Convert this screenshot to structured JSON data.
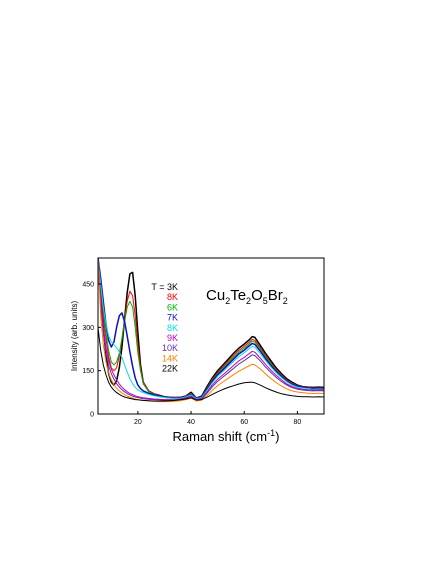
{
  "chart_data": {
    "type": "line",
    "title": "Cu2Te2O5Br2",
    "title_parts": {
      "cu": "Cu",
      "s2a": "2",
      "te": "Te",
      "s2b": "2",
      "o": "O",
      "s5": "5",
      "br": "Br",
      "s2c": "2"
    },
    "xlabel": "Raman shift (cm",
    "xlabel_sup": "-1",
    "xlabel_end": ")",
    "ylabel": "Intensity (arb. units)",
    "xlim": [
      5,
      90
    ],
    "ylim": [
      0,
      540
    ],
    "xticks": [
      20,
      40,
      60,
      80
    ],
    "yticks": [
      0,
      150,
      300,
      450
    ],
    "grid": false,
    "legend_position": "top-center",
    "legend_prefix": "T = ",
    "series": [
      {
        "name": "3K",
        "color": "#000000",
        "width": 1.5,
        "x": [
          5,
          6,
          7,
          8,
          9,
          10,
          11,
          12,
          13,
          14,
          15,
          16,
          17,
          18,
          19,
          20,
          21,
          22,
          24,
          26,
          28,
          30,
          32,
          34,
          36,
          38,
          40,
          42,
          44,
          46,
          48,
          50,
          52,
          54,
          56,
          58,
          60,
          62,
          63,
          64,
          66,
          68,
          70,
          72,
          74,
          76,
          78,
          80,
          82,
          84,
          86,
          88,
          90
        ],
        "y": [
          540,
          420,
          300,
          200,
          140,
          110,
          100,
          115,
          160,
          230,
          330,
          420,
          485,
          490,
          410,
          280,
          170,
          110,
          80,
          70,
          65,
          60,
          58,
          57,
          58,
          62,
          75,
          55,
          62,
          95,
          125,
          150,
          170,
          190,
          210,
          228,
          242,
          258,
          268,
          265,
          238,
          210,
          185,
          160,
          140,
          122,
          110,
          100,
          95,
          93,
          92,
          93,
          92
        ]
      },
      {
        "name": "8K",
        "color": "#ff0000",
        "width": 1.0,
        "x": [
          5,
          6,
          7,
          8,
          9,
          10,
          11,
          12,
          13,
          14,
          15,
          16,
          17,
          18,
          19,
          20,
          21,
          22,
          24,
          26,
          28,
          30,
          32,
          34,
          36,
          38,
          40,
          42,
          44,
          46,
          48,
          50,
          52,
          54,
          56,
          58,
          60,
          62,
          63,
          64,
          66,
          68,
          70,
          72,
          74,
          76,
          78,
          80,
          82,
          84,
          86,
          88,
          90
        ],
        "y": [
          540,
          440,
          340,
          260,
          200,
          160,
          150,
          160,
          200,
          260,
          330,
          390,
          425,
          410,
          340,
          240,
          160,
          110,
          80,
          70,
          64,
          60,
          58,
          57,
          58,
          62,
          72,
          55,
          60,
          90,
          120,
          143,
          163,
          183,
          202,
          220,
          234,
          250,
          258,
          255,
          230,
          203,
          178,
          155,
          135,
          118,
          107,
          98,
          94,
          92,
          90,
          91,
          90
        ]
      },
      {
        "name": "6K",
        "color": "#00b000",
        "width": 1.0,
        "x": [
          5,
          6,
          7,
          8,
          9,
          10,
          11,
          12,
          13,
          14,
          15,
          16,
          17,
          18,
          19,
          20,
          21,
          22,
          24,
          26,
          28,
          30,
          32,
          34,
          36,
          38,
          40,
          42,
          44,
          46,
          48,
          50,
          52,
          54,
          56,
          58,
          60,
          62,
          63,
          64,
          66,
          68,
          70,
          72,
          74,
          76,
          78,
          80,
          82,
          84,
          86,
          88,
          90
        ],
        "y": [
          540,
          450,
          360,
          280,
          220,
          180,
          170,
          180,
          210,
          260,
          320,
          370,
          390,
          370,
          300,
          210,
          150,
          105,
          78,
          68,
          63,
          59,
          57,
          56,
          57,
          61,
          70,
          55,
          59,
          88,
          117,
          140,
          158,
          178,
          196,
          214,
          228,
          244,
          252,
          249,
          225,
          198,
          174,
          152,
          133,
          116,
          105,
          97,
          93,
          91,
          89,
          90,
          89
        ]
      },
      {
        "name": "7K",
        "color": "#1010c0",
        "width": 1.5,
        "x": [
          5,
          6,
          7,
          8,
          9,
          10,
          11,
          12,
          13,
          14,
          15,
          16,
          17,
          18,
          19,
          20,
          21,
          22,
          24,
          26,
          28,
          30,
          32,
          34,
          36,
          38,
          40,
          42,
          44,
          46,
          48,
          50,
          52,
          54,
          56,
          58,
          60,
          62,
          63,
          64,
          66,
          68,
          70,
          72,
          74,
          76,
          78,
          80,
          82,
          84,
          86,
          88,
          90
        ],
        "y": [
          540,
          470,
          390,
          310,
          255,
          232,
          250,
          300,
          340,
          350,
          320,
          270,
          215,
          165,
          125,
          100,
          88,
          80,
          72,
          66,
          62,
          58,
          56,
          55,
          56,
          60,
          68,
          54,
          58,
          85,
          113,
          136,
          153,
          172,
          190,
          208,
          221,
          237,
          244,
          241,
          218,
          192,
          169,
          148,
          130,
          114,
          103,
          96,
          92,
          90,
          88,
          89,
          88
        ]
      },
      {
        "name": "8K",
        "color": "#00e0e0",
        "width": 1.0,
        "x": [
          5,
          6,
          7,
          8,
          9,
          10,
          11,
          12,
          13,
          14,
          15,
          16,
          17,
          18,
          19,
          20,
          21,
          22,
          24,
          26,
          28,
          30,
          32,
          34,
          36,
          38,
          40,
          42,
          44,
          46,
          48,
          50,
          52,
          54,
          56,
          58,
          60,
          62,
          63,
          64,
          66,
          68,
          70,
          72,
          74,
          76,
          78,
          80,
          82,
          84,
          86,
          88,
          90
        ],
        "y": [
          540,
          450,
          370,
          310,
          270,
          250,
          240,
          230,
          215,
          195,
          170,
          145,
          122,
          105,
          92,
          84,
          78,
          74,
          68,
          63,
          60,
          57,
          55,
          54,
          55,
          59,
          66,
          53,
          57,
          82,
          108,
          130,
          147,
          165,
          182,
          199,
          212,
          227,
          234,
          231,
          209,
          185,
          163,
          143,
          126,
          111,
          100,
          93,
          90,
          88,
          86,
          87,
          86
        ]
      },
      {
        "name": "9K",
        "color": "#c000c0",
        "width": 1.0,
        "x": [
          5,
          6,
          7,
          8,
          9,
          10,
          11,
          12,
          13,
          14,
          15,
          16,
          17,
          18,
          19,
          20,
          21,
          22,
          24,
          26,
          28,
          30,
          32,
          34,
          36,
          38,
          40,
          42,
          44,
          46,
          48,
          50,
          52,
          54,
          56,
          58,
          60,
          62,
          63,
          64,
          66,
          68,
          70,
          72,
          74,
          76,
          78,
          80,
          82,
          84,
          86,
          88,
          90
        ],
        "y": [
          540,
          400,
          300,
          230,
          185,
          155,
          135,
          118,
          104,
          93,
          84,
          77,
          71,
          67,
          63,
          60,
          58,
          56,
          54,
          52,
          51,
          50,
          50,
          50,
          52,
          56,
          62,
          50,
          54,
          76,
          100,
          120,
          136,
          152,
          168,
          184,
          196,
          210,
          217,
          214,
          194,
          172,
          152,
          134,
          118,
          104,
          95,
          89,
          86,
          84,
          83,
          84,
          83
        ]
      },
      {
        "name": "10K",
        "color": "#6030a0",
        "width": 1.0,
        "x": [
          5,
          6,
          7,
          8,
          9,
          10,
          11,
          12,
          13,
          14,
          15,
          16,
          17,
          18,
          19,
          20,
          21,
          22,
          24,
          26,
          28,
          30,
          32,
          34,
          36,
          38,
          40,
          42,
          44,
          46,
          48,
          50,
          52,
          54,
          56,
          58,
          60,
          62,
          63,
          64,
          66,
          68,
          70,
          72,
          74,
          76,
          78,
          80,
          82,
          84,
          86,
          88,
          90
        ],
        "y": [
          540,
          380,
          280,
          210,
          168,
          140,
          120,
          105,
          93,
          84,
          77,
          71,
          66,
          62,
          59,
          57,
          55,
          53,
          51,
          50,
          49,
          48,
          48,
          48,
          50,
          54,
          60,
          48,
          52,
          72,
          94,
          113,
          128,
          143,
          158,
          173,
          185,
          198,
          205,
          202,
          184,
          163,
          144,
          127,
          112,
          100,
          91,
          86,
          83,
          81,
          80,
          81,
          80
        ]
      },
      {
        "name": "14K",
        "color": "#ff8000",
        "width": 1.0,
        "x": [
          5,
          6,
          7,
          8,
          9,
          10,
          11,
          12,
          13,
          14,
          15,
          16,
          17,
          18,
          19,
          20,
          21,
          22,
          24,
          26,
          28,
          30,
          32,
          34,
          36,
          38,
          40,
          42,
          44,
          46,
          48,
          50,
          52,
          54,
          56,
          58,
          60,
          62,
          63,
          64,
          66,
          68,
          70,
          72,
          74,
          76,
          78,
          80,
          82,
          84,
          86,
          88,
          90
        ],
        "y": [
          540,
          340,
          240,
          180,
          142,
          118,
          101,
          89,
          80,
          73,
          67,
          62,
          58,
          55,
          52,
          50,
          48,
          47,
          45,
          44,
          43,
          43,
          43,
          44,
          46,
          50,
          55,
          45,
          48,
          64,
          82,
          98,
          111,
          124,
          136,
          148,
          158,
          168,
          172,
          170,
          156,
          139,
          123,
          109,
          97,
          87,
          80,
          76,
          74,
          72,
          71,
          72,
          71
        ]
      },
      {
        "name": "22K",
        "color": "#000000",
        "width": 1.0,
        "x": [
          5,
          6,
          7,
          8,
          9,
          10,
          11,
          12,
          13,
          14,
          15,
          16,
          17,
          18,
          19,
          20,
          21,
          22,
          24,
          26,
          28,
          30,
          32,
          34,
          36,
          38,
          40,
          42,
          44,
          46,
          48,
          50,
          52,
          54,
          56,
          58,
          60,
          62,
          63,
          64,
          66,
          68,
          70,
          72,
          74,
          76,
          78,
          80,
          82,
          84,
          86,
          88,
          90
        ],
        "y": [
          300,
          220,
          170,
          135,
          110,
          93,
          82,
          74,
          68,
          63,
          59,
          56,
          54,
          52,
          50,
          49,
          48,
          47,
          46,
          45,
          45,
          45,
          46,
          47,
          49,
          52,
          56,
          48,
          50,
          58,
          68,
          77,
          85,
          92,
          98,
          104,
          108,
          110,
          110,
          108,
          100,
          91,
          83,
          76,
          70,
          66,
          63,
          61,
          60,
          60,
          59,
          60,
          59
        ]
      }
    ]
  }
}
